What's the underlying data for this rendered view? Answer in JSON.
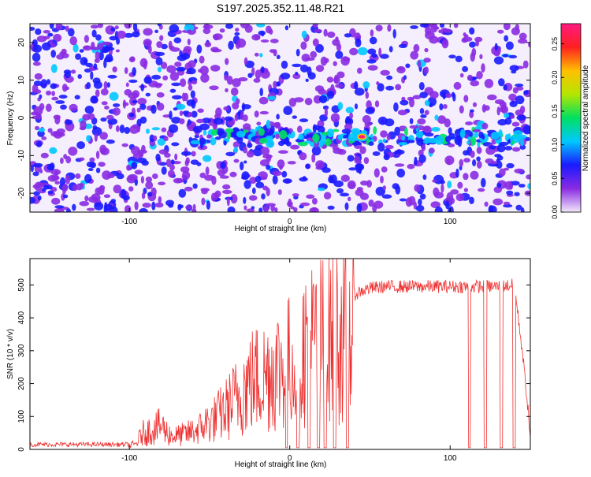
{
  "title": "S197.2025.352.11.48.R21",
  "chart_data": [
    {
      "type": "heatmap",
      "xlabel": "Height of straight line (km)",
      "ylabel": "Frequency (Hz)",
      "xlim": [
        -162,
        150
      ],
      "ylim": [
        -25,
        25
      ],
      "xticks": [
        -100,
        0,
        100
      ],
      "yticks": [
        -20,
        -10,
        0,
        10,
        20
      ],
      "colorbar": {
        "label": "Normalized spectral amplitude",
        "range": [
          0,
          0.28
        ],
        "ticks": [
          "0.00",
          "0.05",
          "0.10",
          "0.15",
          "0.20",
          "0.25"
        ],
        "colors": [
          "#f2e8fb",
          "#8a2be2",
          "#1a1aff",
          "#00c8ff",
          "#00e060",
          "#b4e600",
          "#ffc000",
          "#ff2020",
          "#ff1a80"
        ]
      },
      "features": [
        {
          "name": "persistent band",
          "frequency_hz": -5,
          "x_range_km": [
            -60,
            150
          ]
        },
        {
          "name": "peak",
          "x_km": 45,
          "frequency_hz": -5,
          "amplitude": 0.27
        }
      ]
    },
    {
      "type": "line",
      "xlabel": "Height of straight line (km)",
      "ylabel": "SNR (10 * v/v)",
      "xlim": [
        -162,
        150
      ],
      "ylim": [
        0,
        580
      ],
      "xticks": [
        -100,
        0,
        100
      ],
      "yticks": [
        0,
        100,
        200,
        300,
        400,
        500
      ],
      "color": "#ee3030",
      "series": [
        {
          "name": "SNR",
          "x": [
            -160,
            -140,
            -120,
            -100,
            -96,
            -92,
            -88,
            -84,
            -80,
            -76,
            -72,
            -68,
            -64,
            -60,
            -56,
            -52,
            -48,
            -44,
            -40,
            -36,
            -32,
            -28,
            -24,
            -20,
            -16,
            -12,
            -8,
            -4,
            0,
            4,
            8,
            12,
            16,
            20,
            24,
            28,
            32,
            36,
            40,
            44,
            50,
            60,
            70,
            80,
            90,
            100,
            110,
            120,
            130,
            140,
            145,
            148,
            150
          ],
          "y": [
            15,
            15,
            15,
            15,
            20,
            60,
            70,
            80,
            90,
            60,
            50,
            55,
            60,
            70,
            80,
            100,
            110,
            130,
            150,
            180,
            200,
            240,
            260,
            270,
            280,
            300,
            310,
            320,
            330,
            340,
            380,
            400,
            410,
            420,
            430,
            440,
            450,
            460,
            470,
            480,
            490,
            495,
            495,
            495,
            495,
            495,
            495,
            495,
            495,
            500,
            300,
            150,
            40
          ]
        }
      ],
      "dropouts_km": [
        -2,
        5,
        12,
        18,
        22,
        28,
        36,
        112,
        122,
        132,
        140
      ]
    }
  ]
}
